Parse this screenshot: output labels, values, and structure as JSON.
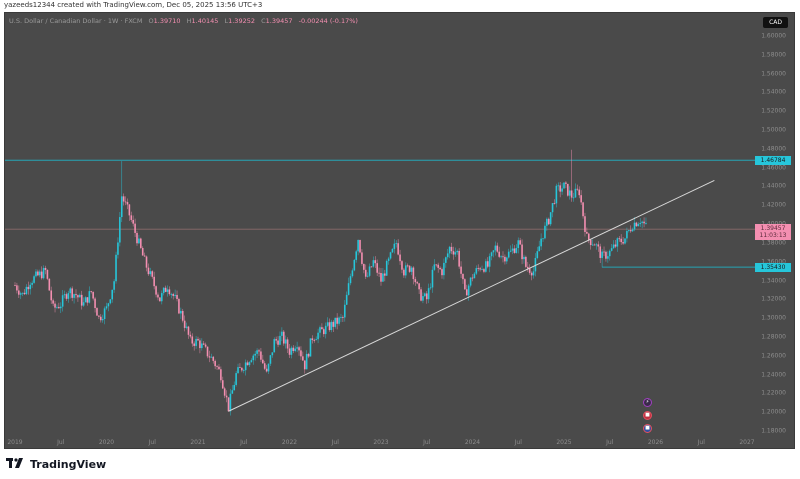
{
  "caption": "yazeeds12344 created with TradingView.com, Dec 05, 2025 13:56 UTC+3",
  "legend": {
    "symbol": "U.S. Dollar / Canadian Dollar · 1W · FXCM",
    "o_label": "O",
    "open": "1.39710",
    "h_label": "H",
    "high": "1.40145",
    "l_label": "L",
    "low": "1.39252",
    "c_label": "C",
    "close": "1.39457",
    "change": "-0.00244 (-0.17%)"
  },
  "currency_badge": "CAD",
  "price_labels": {
    "resistance": "1.46784",
    "current_price": "1.39457",
    "countdown": "11:03:13",
    "support": "1.35430"
  },
  "branding": {
    "logo_text": "TradingView"
  },
  "colors": {
    "background": "#4a4a4a",
    "bull": "#26c6da",
    "bear": "#f48fb1",
    "level_line": "#26a5b5",
    "price_line": "#8a6a6a",
    "trendline": "#d8d8d8"
  },
  "chart_data": {
    "type": "candlestick",
    "title": "U.S. Dollar / Canadian Dollar · 1W · FXCM",
    "xlabel": "",
    "ylabel": "CAD",
    "ylim": [
      1.17,
      1.61
    ],
    "y_ticks": [
      "1.60000",
      "1.58000",
      "1.56000",
      "1.54000",
      "1.52000",
      "1.50000",
      "1.48000",
      "1.46000",
      "1.44000",
      "1.42000",
      "1.40000",
      "1.38000",
      "1.36000",
      "1.34000",
      "1.32000",
      "1.30000",
      "1.28000",
      "1.26000",
      "1.24000",
      "1.22000",
      "1.20000",
      "1.18000"
    ],
    "x_ticks": [
      "2019",
      "Jul",
      "2020",
      "Jul",
      "2021",
      "Jul",
      "2022",
      "Jul",
      "2023",
      "Jul",
      "2024",
      "Jul",
      "2025",
      "Jul",
      "2026",
      "Jul",
      "2027"
    ],
    "horizontal_levels": [
      {
        "name": "resistance",
        "value": 1.46784,
        "from": "2020-03"
      },
      {
        "name": "support",
        "value": 1.3543,
        "from": "2025-06"
      }
    ],
    "trendline": {
      "start": {
        "date": "2021-05",
        "value": 1.201
      },
      "end": {
        "date": "2025-11",
        "value": 1.409
      }
    },
    "last_price": 1.39457,
    "anchor_closes": [
      {
        "date": "2019-01",
        "value": 1.335
      },
      {
        "date": "2019-02",
        "value": 1.325
      },
      {
        "date": "2019-03",
        "value": 1.34
      },
      {
        "date": "2019-04",
        "value": 1.345
      },
      {
        "date": "2019-05",
        "value": 1.35
      },
      {
        "date": "2019-06",
        "value": 1.31
      },
      {
        "date": "2019-07",
        "value": 1.315
      },
      {
        "date": "2019-08",
        "value": 1.33
      },
      {
        "date": "2019-09",
        "value": 1.325
      },
      {
        "date": "2019-10",
        "value": 1.315
      },
      {
        "date": "2019-11",
        "value": 1.328
      },
      {
        "date": "2019-12",
        "value": 1.3
      },
      {
        "date": "2020-01",
        "value": 1.31
      },
      {
        "date": "2020-02",
        "value": 1.34
      },
      {
        "date": "2020-03",
        "value": 1.43
      },
      {
        "date": "2020-04",
        "value": 1.41
      },
      {
        "date": "2020-05",
        "value": 1.385
      },
      {
        "date": "2020-06",
        "value": 1.36
      },
      {
        "date": "2020-07",
        "value": 1.34
      },
      {
        "date": "2020-08",
        "value": 1.32
      },
      {
        "date": "2020-09",
        "value": 1.335
      },
      {
        "date": "2020-10",
        "value": 1.32
      },
      {
        "date": "2020-11",
        "value": 1.3
      },
      {
        "date": "2020-12",
        "value": 1.275
      },
      {
        "date": "2021-01",
        "value": 1.275
      },
      {
        "date": "2021-02",
        "value": 1.265
      },
      {
        "date": "2021-03",
        "value": 1.255
      },
      {
        "date": "2021-04",
        "value": 1.24
      },
      {
        "date": "2021-05",
        "value": 1.205
      },
      {
        "date": "2021-06",
        "value": 1.24
      },
      {
        "date": "2021-07",
        "value": 1.25
      },
      {
        "date": "2021-08",
        "value": 1.26
      },
      {
        "date": "2021-09",
        "value": 1.265
      },
      {
        "date": "2021-10",
        "value": 1.24
      },
      {
        "date": "2021-11",
        "value": 1.275
      },
      {
        "date": "2021-12",
        "value": 1.28
      },
      {
        "date": "2022-01",
        "value": 1.265
      },
      {
        "date": "2022-02",
        "value": 1.275
      },
      {
        "date": "2022-03",
        "value": 1.25
      },
      {
        "date": "2022-04",
        "value": 1.28
      },
      {
        "date": "2022-05",
        "value": 1.285
      },
      {
        "date": "2022-06",
        "value": 1.29
      },
      {
        "date": "2022-07",
        "value": 1.295
      },
      {
        "date": "2022-08",
        "value": 1.3
      },
      {
        "date": "2022-09",
        "value": 1.345
      },
      {
        "date": "2022-10",
        "value": 1.385
      },
      {
        "date": "2022-11",
        "value": 1.34
      },
      {
        "date": "2022-12",
        "value": 1.36
      },
      {
        "date": "2023-01",
        "value": 1.34
      },
      {
        "date": "2023-02",
        "value": 1.36
      },
      {
        "date": "2023-03",
        "value": 1.38
      },
      {
        "date": "2023-04",
        "value": 1.35
      },
      {
        "date": "2023-05",
        "value": 1.355
      },
      {
        "date": "2023-06",
        "value": 1.325
      },
      {
        "date": "2023-07",
        "value": 1.32
      },
      {
        "date": "2023-08",
        "value": 1.355
      },
      {
        "date": "2023-09",
        "value": 1.35
      },
      {
        "date": "2023-10",
        "value": 1.375
      },
      {
        "date": "2023-11",
        "value": 1.37
      },
      {
        "date": "2023-12",
        "value": 1.325
      },
      {
        "date": "2024-01",
        "value": 1.345
      },
      {
        "date": "2024-02",
        "value": 1.355
      },
      {
        "date": "2024-03",
        "value": 1.355
      },
      {
        "date": "2024-04",
        "value": 1.375
      },
      {
        "date": "2024-05",
        "value": 1.365
      },
      {
        "date": "2024-06",
        "value": 1.37
      },
      {
        "date": "2024-07",
        "value": 1.38
      },
      {
        "date": "2024-08",
        "value": 1.355
      },
      {
        "date": "2024-09",
        "value": 1.35
      },
      {
        "date": "2024-10",
        "value": 1.385
      },
      {
        "date": "2024-11",
        "value": 1.405
      },
      {
        "date": "2024-12",
        "value": 1.435
      },
      {
        "date": "2025-01",
        "value": 1.44
      },
      {
        "date": "2025-02",
        "value": 1.43
      },
      {
        "date": "2025-03",
        "value": 1.435
      },
      {
        "date": "2025-04",
        "value": 1.385
      },
      {
        "date": "2025-05",
        "value": 1.38
      },
      {
        "date": "2025-06",
        "value": 1.365
      },
      {
        "date": "2025-07",
        "value": 1.37
      },
      {
        "date": "2025-08",
        "value": 1.38
      },
      {
        "date": "2025-09",
        "value": 1.385
      },
      {
        "date": "2025-10",
        "value": 1.4
      },
      {
        "date": "2025-11",
        "value": 1.405
      },
      {
        "date": "2025-12",
        "value": 1.3946
      }
    ],
    "extremes": [
      {
        "date": "2020-03",
        "high": 1.467
      },
      {
        "date": "2021-05",
        "low": 1.2005
      },
      {
        "date": "2025-02",
        "high": 1.479
      },
      {
        "date": "2025-06",
        "low": 1.354
      }
    ]
  }
}
